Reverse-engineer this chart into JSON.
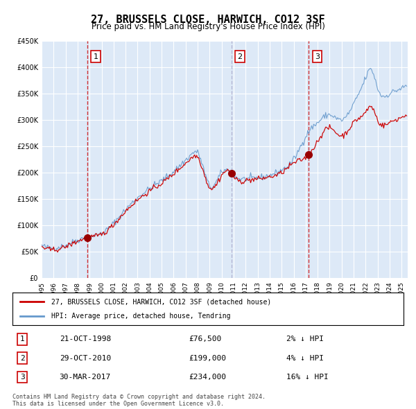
{
  "title": "27, BRUSSELS CLOSE, HARWICH, CO12 3SF",
  "subtitle": "Price paid vs. HM Land Registry's House Price Index (HPI)",
  "hpi_label": "HPI: Average price, detached house, Tendring",
  "price_label": "27, BRUSSELS CLOSE, HARWICH, CO12 3SF (detached house)",
  "transactions": [
    {
      "num": 1,
      "date": "21-OCT-1998",
      "price": 76500,
      "hpi_diff": "2% ↓ HPI",
      "year": 1998.8
    },
    {
      "num": 2,
      "date": "29-OCT-2010",
      "price": 199000,
      "hpi_diff": "4% ↓ HPI",
      "year": 2010.8
    },
    {
      "num": 3,
      "date": "30-MAR-2017",
      "price": 234000,
      "hpi_diff": "16% ↓ HPI",
      "year": 2017.25
    }
  ],
  "footnote1": "Contains HM Land Registry data © Crown copyright and database right 2024.",
  "footnote2": "This data is licensed under the Open Government Licence v3.0.",
  "bg_color": "#dde9f7",
  "plot_bg_color": "#dde9f7",
  "grid_color": "#ffffff",
  "red_line_color": "#cc0000",
  "blue_line_color": "#6699cc",
  "marker_color": "#990000",
  "vline1_color": "#cc0000",
  "vline2_color": "#aaaacc",
  "ylim": [
    0,
    450000
  ],
  "yticks": [
    0,
    50000,
    100000,
    150000,
    200000,
    250000,
    300000,
    350000,
    400000,
    450000
  ],
  "xmin": 1995.0,
  "xmax": 2025.5
}
